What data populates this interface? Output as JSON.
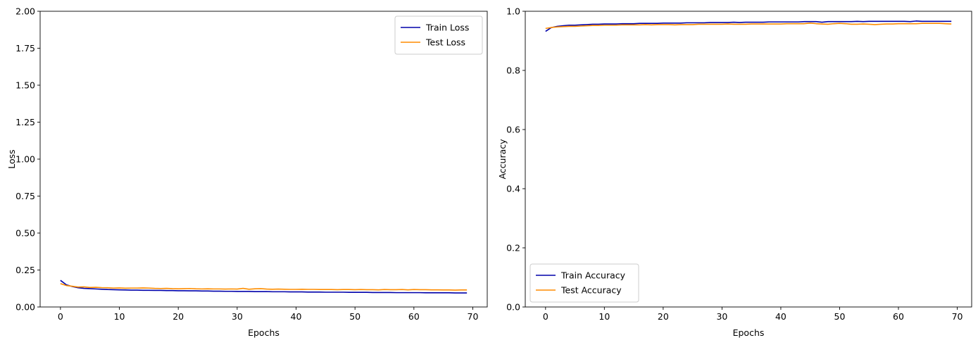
{
  "chart_data": [
    {
      "type": "line",
      "xlabel": "Epochs",
      "ylabel": "Loss",
      "xlim": [
        -3.45,
        72.45
      ],
      "ylim": [
        0,
        2
      ],
      "xticks": [
        0,
        10,
        20,
        30,
        40,
        50,
        60,
        70
      ],
      "yticks": [
        0.0,
        0.25,
        0.5,
        0.75,
        1.0,
        1.25,
        1.5,
        1.75,
        2.0
      ],
      "ytick_labels": [
        "0.00",
        "0.25",
        "0.50",
        "0.75",
        "1.00",
        "1.25",
        "1.50",
        "1.75",
        "2.00"
      ],
      "legend": "top-right",
      "grid": false,
      "series": [
        {
          "name": "Train Loss",
          "color": "#0000aa",
          "values": [
            0.18,
            0.15,
            0.138,
            0.13,
            0.126,
            0.124,
            0.122,
            0.12,
            0.118,
            0.117,
            0.116,
            0.115,
            0.114,
            0.114,
            0.113,
            0.113,
            0.112,
            0.112,
            0.111,
            0.111,
            0.11,
            0.11,
            0.109,
            0.109,
            0.108,
            0.108,
            0.107,
            0.107,
            0.106,
            0.106,
            0.105,
            0.105,
            0.105,
            0.104,
            0.104,
            0.104,
            0.103,
            0.103,
            0.103,
            0.102,
            0.102,
            0.102,
            0.101,
            0.101,
            0.101,
            0.1,
            0.1,
            0.1,
            0.1,
            0.099,
            0.099,
            0.099,
            0.099,
            0.098,
            0.098,
            0.098,
            0.098,
            0.097,
            0.097,
            0.097,
            0.097,
            0.097,
            0.096,
            0.096,
            0.096,
            0.096,
            0.096,
            0.095,
            0.095,
            0.095
          ]
        },
        {
          "name": "Test Loss",
          "color": "#ff8c00",
          "values": [
            0.158,
            0.145,
            0.14,
            0.135,
            0.136,
            0.132,
            0.133,
            0.131,
            0.13,
            0.128,
            0.129,
            0.127,
            0.128,
            0.128,
            0.129,
            0.128,
            0.126,
            0.125,
            0.126,
            0.124,
            0.123,
            0.124,
            0.125,
            0.123,
            0.122,
            0.123,
            0.122,
            0.122,
            0.121,
            0.122,
            0.121,
            0.126,
            0.12,
            0.123,
            0.124,
            0.121,
            0.12,
            0.121,
            0.12,
            0.119,
            0.119,
            0.12,
            0.119,
            0.119,
            0.118,
            0.118,
            0.118,
            0.117,
            0.118,
            0.118,
            0.117,
            0.118,
            0.117,
            0.117,
            0.116,
            0.118,
            0.117,
            0.117,
            0.118,
            0.116,
            0.118,
            0.117,
            0.117,
            0.116,
            0.116,
            0.115,
            0.115,
            0.114,
            0.115,
            0.115
          ]
        }
      ]
    },
    {
      "type": "line",
      "xlabel": "Epochs",
      "ylabel": "Accuracy",
      "xlim": [
        -3.45,
        72.45
      ],
      "ylim": [
        0,
        1
      ],
      "xticks": [
        0,
        10,
        20,
        30,
        40,
        50,
        60,
        70
      ],
      "yticks": [
        0.0,
        0.2,
        0.4,
        0.6,
        0.8,
        1.0
      ],
      "ytick_labels": [
        "0.0",
        "0.2",
        "0.4",
        "0.6",
        "0.8",
        "1.0"
      ],
      "legend": "bottom-left",
      "grid": false,
      "series": [
        {
          "name": "Train Accuracy",
          "color": "#0000aa",
          "values": [
            0.932,
            0.945,
            0.949,
            0.951,
            0.953,
            0.953,
            0.954,
            0.955,
            0.956,
            0.956,
            0.957,
            0.957,
            0.957,
            0.958,
            0.958,
            0.958,
            0.959,
            0.959,
            0.959,
            0.959,
            0.96,
            0.96,
            0.96,
            0.96,
            0.961,
            0.961,
            0.961,
            0.961,
            0.962,
            0.962,
            0.962,
            0.962,
            0.963,
            0.962,
            0.963,
            0.963,
            0.963,
            0.963,
            0.964,
            0.964,
            0.964,
            0.964,
            0.964,
            0.964,
            0.965,
            0.965,
            0.965,
            0.963,
            0.965,
            0.965,
            0.965,
            0.965,
            0.965,
            0.966,
            0.965,
            0.966,
            0.966,
            0.966,
            0.966,
            0.966,
            0.966,
            0.966,
            0.965,
            0.967,
            0.966,
            0.966,
            0.966,
            0.966,
            0.966,
            0.966
          ]
        },
        {
          "name": "Test Accuracy",
          "color": "#ff8c00",
          "values": [
            0.942,
            0.945,
            0.947,
            0.948,
            0.949,
            0.949,
            0.95,
            0.951,
            0.952,
            0.952,
            0.953,
            0.953,
            0.953,
            0.954,
            0.954,
            0.954,
            0.954,
            0.955,
            0.954,
            0.955,
            0.955,
            0.955,
            0.954,
            0.955,
            0.955,
            0.955,
            0.956,
            0.956,
            0.956,
            0.956,
            0.956,
            0.957,
            0.956,
            0.956,
            0.956,
            0.957,
            0.957,
            0.957,
            0.957,
            0.957,
            0.957,
            0.958,
            0.958,
            0.958,
            0.958,
            0.96,
            0.958,
            0.957,
            0.956,
            0.958,
            0.959,
            0.958,
            0.956,
            0.956,
            0.957,
            0.956,
            0.955,
            0.956,
            0.957,
            0.957,
            0.958,
            0.958,
            0.958,
            0.958,
            0.959,
            0.959,
            0.959,
            0.959,
            0.958,
            0.957
          ]
        }
      ]
    }
  ]
}
